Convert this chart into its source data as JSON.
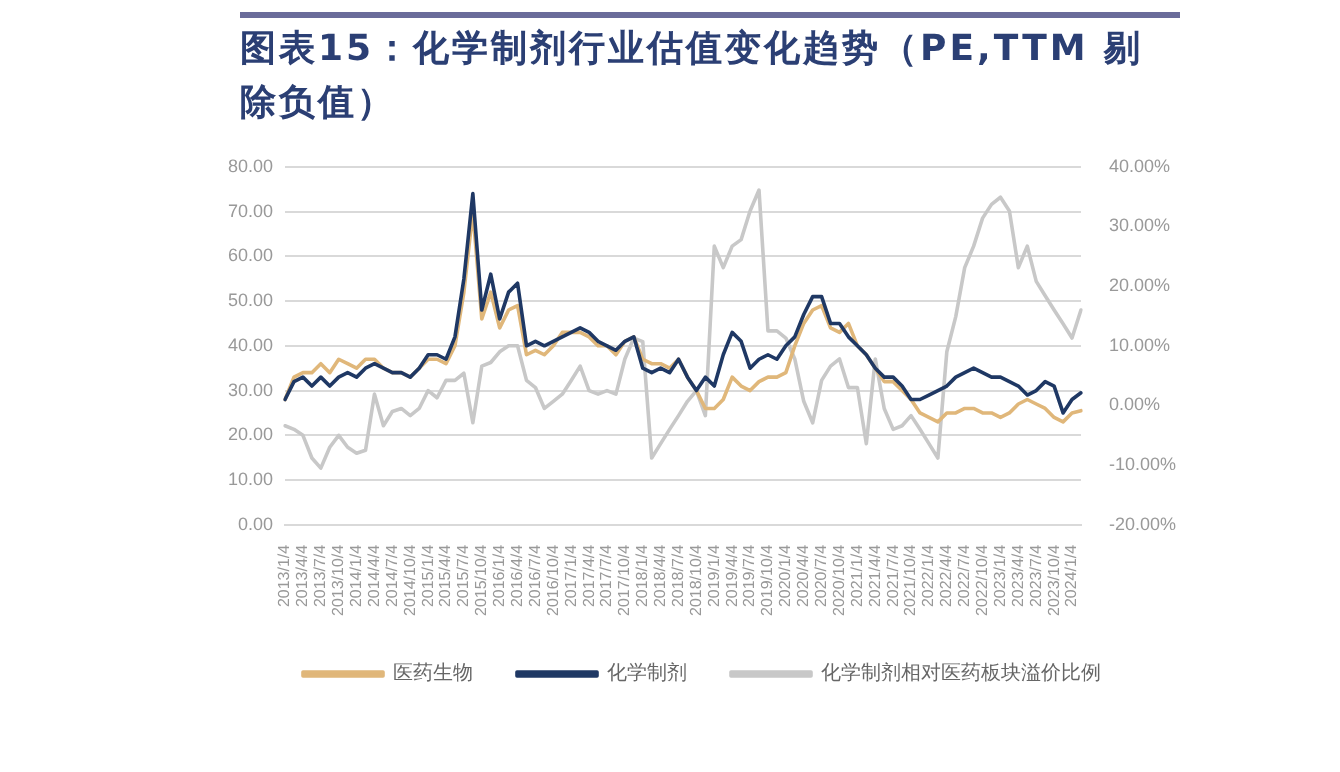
{
  "chart_data": {
    "type": "line",
    "title": "图表15：化学制剂行业估值变化趋势（PE,TTM 剔除负值）",
    "categories": [
      "2013/1/4",
      null,
      "2013/4/4",
      null,
      "2013/7/4",
      null,
      "2013/10/4",
      null,
      "2014/1/4",
      null,
      "2014/4/4",
      null,
      "2014/7/4",
      null,
      "2014/10/4",
      null,
      "2015/1/4",
      null,
      "2015/4/4",
      null,
      "2015/7/4",
      null,
      "2015/10/4",
      null,
      "2016/1/4",
      null,
      "2016/4/4",
      null,
      "2016/7/4",
      null,
      "2016/10/4",
      null,
      "2017/1/4",
      null,
      "2017/4/4",
      null,
      "2017/7/4",
      null,
      "2017/10/4",
      null,
      "2018/1/4",
      null,
      "2018/4/4",
      null,
      "2018/7/4",
      null,
      "2018/10/4",
      null,
      "2019/1/4",
      null,
      "2019/4/4",
      null,
      "2019/7/4",
      null,
      "2019/10/4",
      null,
      "2020/1/4",
      null,
      "2020/4/4",
      null,
      "2020/7/4",
      null,
      "2020/10/4",
      null,
      "2021/1/4",
      null,
      "2021/4/4",
      null,
      "2021/7/4",
      null,
      "2021/10/4",
      null,
      "2022/1/4",
      null,
      "2022/4/4",
      null,
      "2022/7/4",
      null,
      "2022/10/4",
      null,
      "2023/1/4",
      null,
      "2023/4/4",
      null,
      "2023/7/4",
      null,
      "2023/10/4",
      null,
      "2024/1/4",
      null
    ],
    "series": [
      {
        "name": "医药生物",
        "color": "#e0b77a",
        "values": [
          28,
          33,
          34,
          34,
          36,
          34,
          37,
          36,
          35,
          37,
          37,
          35,
          34,
          34,
          33,
          35,
          37,
          37,
          36,
          40,
          52,
          70,
          46,
          52,
          44,
          48,
          49,
          38,
          39,
          38,
          40,
          43,
          43,
          43,
          42,
          40,
          40,
          38,
          41,
          42,
          37,
          36,
          36,
          35,
          37,
          33,
          30,
          26,
          26,
          28,
          33,
          31,
          30,
          32,
          33,
          33,
          34,
          40,
          45,
          48,
          49,
          44,
          43,
          45,
          40,
          38,
          35,
          32,
          32,
          30,
          28,
          25,
          24,
          23,
          25,
          25,
          26,
          26,
          25,
          25,
          24,
          25,
          27,
          28,
          27,
          26,
          24,
          23,
          25,
          25.5
        ]
      },
      {
        "name": "化学制剂",
        "color": "#1f3864",
        "values": [
          28,
          32,
          33,
          31,
          33,
          31,
          33,
          34,
          33,
          35,
          36,
          35,
          34,
          34,
          33,
          35,
          38,
          38,
          37,
          42,
          55,
          74,
          48,
          56,
          46,
          52,
          54,
          40,
          41,
          40,
          41,
          42,
          43,
          44,
          43,
          41,
          40,
          39,
          41,
          42,
          35,
          34,
          35,
          34,
          37,
          33,
          30,
          33,
          31,
          38,
          43,
          41,
          35,
          37,
          38,
          37,
          40,
          42,
          47,
          51,
          51,
          45,
          45,
          42,
          40,
          38,
          35,
          33,
          33,
          31,
          28,
          28,
          29,
          30,
          31,
          33,
          34,
          35,
          34,
          33,
          33,
          32,
          31,
          29,
          30,
          32,
          31,
          25,
          28,
          29.5
        ]
      },
      {
        "name": "化学制剂相对医药板块溢价比例",
        "color": "#c8c8c8",
        "axis": "y2",
        "values": [
          -3.4,
          -4,
          -5,
          -8.8,
          -10.5,
          -7,
          -5,
          -7,
          -8,
          -7.5,
          1.9,
          -3.4,
          -1,
          -0.5,
          -1.7,
          -0.5,
          2.5,
          1.3,
          4.2,
          4.2,
          5.4,
          -2.9,
          6.6,
          7.2,
          9,
          10,
          10,
          4.2,
          3,
          -0.5,
          0.7,
          1.9,
          4.2,
          6.6,
          2.5,
          1.9,
          2.5,
          1.9,
          7.8,
          11.3,
          10.7,
          -8.8,
          -6.4,
          -4,
          -1.7,
          0.7,
          2.5,
          -1.7,
          26.7,
          23.1,
          26.7,
          27.8,
          32.6,
          36.1,
          12.5,
          12.5,
          11.3,
          7.8,
          0.7,
          -2.9,
          4.2,
          6.6,
          7.8,
          3,
          3,
          -6.4,
          7.8,
          -0.5,
          -4,
          -3.4,
          -1.7,
          -4,
          -6.4,
          -8.8,
          9,
          14.9,
          23.1,
          26.7,
          31.4,
          33.7,
          34.9,
          32.6,
          23.1,
          26.7,
          20.8,
          18.4,
          16,
          13.7,
          11.3,
          16
        ]
      }
    ],
    "ylim": [
      0,
      80
    ],
    "yticks": [
      {
        "value": 0,
        "label": "0.00"
      },
      {
        "value": 10,
        "label": "10.00"
      },
      {
        "value": 20,
        "label": "20.00"
      },
      {
        "value": 30,
        "label": "30.00"
      },
      {
        "value": 40,
        "label": "40.00"
      },
      {
        "value": 50,
        "label": "50.00"
      },
      {
        "value": 60,
        "label": "60.00"
      },
      {
        "value": 70,
        "label": "70.00"
      },
      {
        "value": 80,
        "label": "80.00"
      }
    ],
    "y2lim": [
      -20,
      40
    ],
    "y2ticks": [
      {
        "value": -20,
        "label": "-20.00%"
      },
      {
        "value": -10,
        "label": "-10.00%"
      },
      {
        "value": 0,
        "label": "0.00%"
      },
      {
        "value": 10,
        "label": "10.00%"
      },
      {
        "value": 20,
        "label": "20.00%"
      },
      {
        "value": 30,
        "label": "30.00%"
      },
      {
        "value": 40,
        "label": "40.00%"
      }
    ],
    "grid": "y",
    "legend": "bottom",
    "marker": "none",
    "line_style": "solid"
  }
}
